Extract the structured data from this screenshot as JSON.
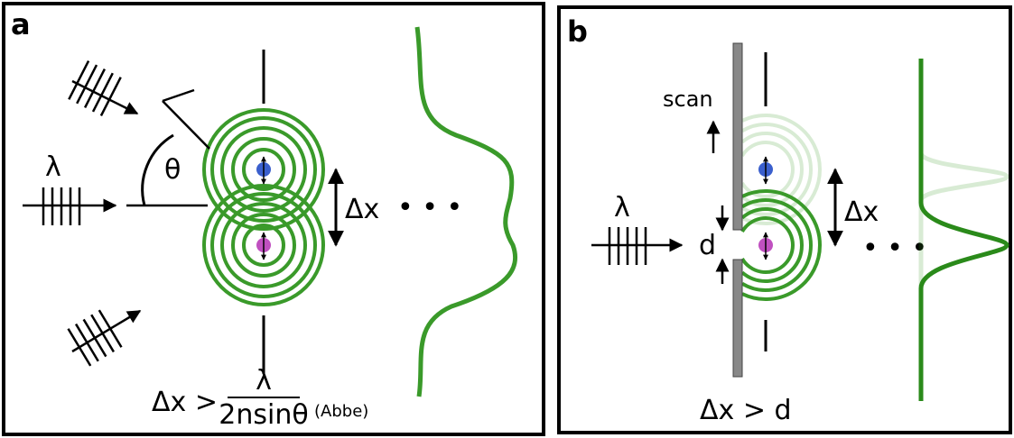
{
  "panel_a": {
    "label": "a",
    "lambda": "λ",
    "theta": "θ",
    "delta_x": "Δx",
    "dots": "• • •",
    "formula_left": "Δx >",
    "formula_num": "λ",
    "formula_den": "2nsinθ",
    "formula_note": "(Abbe)"
  },
  "panel_b": {
    "label": "b",
    "lambda": "λ",
    "scan": "scan",
    "d": "d",
    "delta_x": "Δx",
    "dots": "• • •",
    "formula": "Δx > d"
  }
}
